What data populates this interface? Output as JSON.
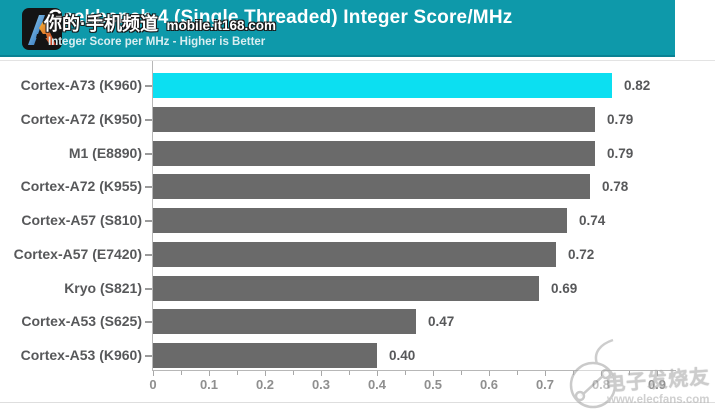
{
  "header": {
    "title": "Geekbench 4 (Single Threaded) Integer Score/MHz",
    "subtitle": "Integer Score per MHz - Higher is Better",
    "background_color": "#0e99aa"
  },
  "watermarks": {
    "top": {
      "text_cn": "你的·手机频道",
      "domain": "mobile.it168.com"
    },
    "bottom": {
      "text_cn": "电子发烧友",
      "domain": "www.elecfans.com"
    }
  },
  "chart_data": {
    "type": "bar",
    "orientation": "horizontal",
    "title": "Geekbench 4 (Single Threaded) Integer Score/MHz",
    "subtitle": "Integer Score per MHz - Higher is Better",
    "categories": [
      "Cortex-A73 (K960)",
      "Cortex-A72 (K950)",
      "M1 (E8890)",
      "Cortex-A72 (K955)",
      "Cortex-A57 (S810)",
      "Cortex-A57 (E7420)",
      "Kryo (S821)",
      "Cortex-A53 (S625)",
      "Cortex-A53 (K960)"
    ],
    "values": [
      0.82,
      0.79,
      0.79,
      0.78,
      0.74,
      0.72,
      0.69,
      0.47,
      0.4
    ],
    "value_labels": [
      "0.82",
      "0.79",
      "0.79",
      "0.78",
      "0.74",
      "0.72",
      "0.69",
      "0.47",
      "0.40"
    ],
    "highlight_index": 0,
    "highlight_color": "#0cdff1",
    "bar_color": "#6a6a6a",
    "xlim": [
      0,
      0.9
    ],
    "x_ticks": [
      "0",
      "0.1",
      "0.2",
      "0.3",
      "0.4",
      "0.5",
      "0.6",
      "0.7",
      "0.8",
      "0.9"
    ],
    "minor_tick_step": 0.05,
    "grid": false,
    "legend": false
  }
}
